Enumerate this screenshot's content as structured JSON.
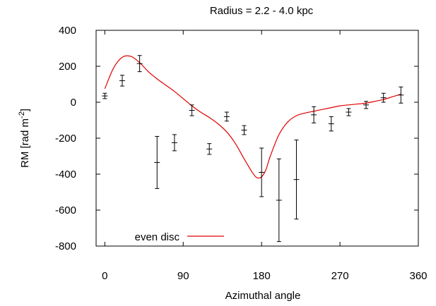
{
  "chart_data": {
    "type": "scatter",
    "title": "Radius = 2.2 - 4.0 kpc",
    "xlabel": "Azimuthal angle",
    "ylabel_main": "RM [rad m",
    "ylabel_sup": "-2",
    "ylabel_close": "]",
    "xlim": [
      -10,
      360
    ],
    "ylim": [
      -800,
      400
    ],
    "xticks": [
      0,
      90,
      180,
      270,
      360
    ],
    "yticks": [
      -800,
      -600,
      -400,
      -200,
      0,
      200,
      400
    ],
    "grid": false,
    "legend_position": "bottom-left",
    "observations": [
      {
        "x": 0,
        "y": 35,
        "err": 15
      },
      {
        "x": 20,
        "y": 120,
        "err": 30
      },
      {
        "x": 40,
        "y": 215,
        "err": 45
      },
      {
        "x": 60,
        "y": -335,
        "err": 145
      },
      {
        "x": 80,
        "y": -225,
        "err": 45
      },
      {
        "x": 100,
        "y": -45,
        "err": 30
      },
      {
        "x": 120,
        "y": -260,
        "err": 30
      },
      {
        "x": 140,
        "y": -80,
        "err": 25
      },
      {
        "x": 160,
        "y": -155,
        "err": 25
      },
      {
        "x": 180,
        "y": -390,
        "err": 135
      },
      {
        "x": 200,
        "y": -545,
        "err": 230
      },
      {
        "x": 220,
        "y": -430,
        "err": 220
      },
      {
        "x": 240,
        "y": -70,
        "err": 45
      },
      {
        "x": 260,
        "y": -120,
        "err": 40
      },
      {
        "x": 280,
        "y": -55,
        "err": 20
      },
      {
        "x": 300,
        "y": -15,
        "err": 20
      },
      {
        "x": 320,
        "y": 25,
        "err": 25
      },
      {
        "x": 340,
        "y": 40,
        "err": 45
      }
    ],
    "series": [
      {
        "name": "even disc",
        "color": "#e00000",
        "x": [
          0,
          10,
          20,
          30,
          40,
          50,
          60,
          70,
          80,
          90,
          100,
          110,
          120,
          130,
          140,
          150,
          160,
          170,
          175,
          180,
          185,
          190,
          200,
          210,
          220,
          230,
          240,
          250,
          260,
          270,
          280,
          290,
          300,
          310,
          320,
          330,
          340
        ],
        "y": [
          75,
          190,
          250,
          255,
          220,
          170,
          130,
          95,
          60,
          20,
          -20,
          -55,
          -85,
          -120,
          -165,
          -230,
          -315,
          -395,
          -420,
          -415,
          -375,
          -300,
          -180,
          -110,
          -75,
          -60,
          -50,
          -40,
          -30,
          -20,
          -15,
          -10,
          -5,
          5,
          15,
          30,
          45
        ]
      }
    ]
  }
}
